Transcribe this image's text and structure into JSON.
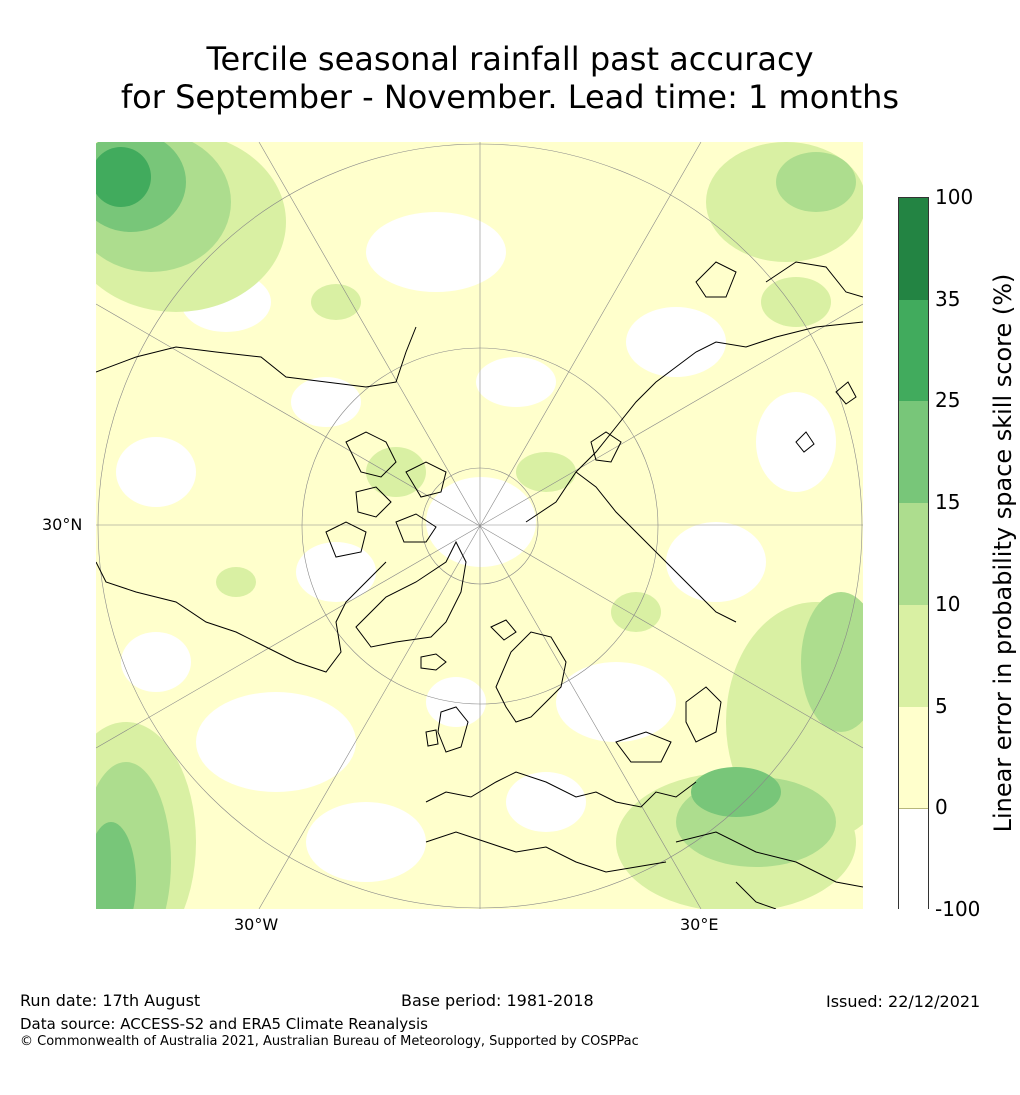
{
  "title": {
    "line1": "Tercile seasonal rainfall past accuracy",
    "line2": "for September - November. Lead time: 1 months"
  },
  "map": {
    "labels": {
      "lat_30n": "30°N",
      "lon_30w": "30°W",
      "lon_30e": "30°E"
    }
  },
  "colorbar": {
    "label": "Linear error in probability space skill score (%)",
    "ticks": [
      "100",
      "35",
      "25",
      "15",
      "10",
      "5",
      "0",
      "-100"
    ],
    "colors": [
      "#238443",
      "#41ab5d",
      "#78c679",
      "#addd8e",
      "#d9f0a3",
      "#ffffcc",
      "#ffffff"
    ]
  },
  "footer": {
    "run_date": "Run date: 17th August",
    "base_period": "Base period: 1981-2018",
    "issued": "Issued: 22/12/2021",
    "data_source": "Data source: ACCESS-S2 and ERA5 Climate Reanalysis",
    "copyright": "© Commonwealth of Australia 2021, Australian Bureau of Meteorology, Supported by COSPPac"
  }
}
